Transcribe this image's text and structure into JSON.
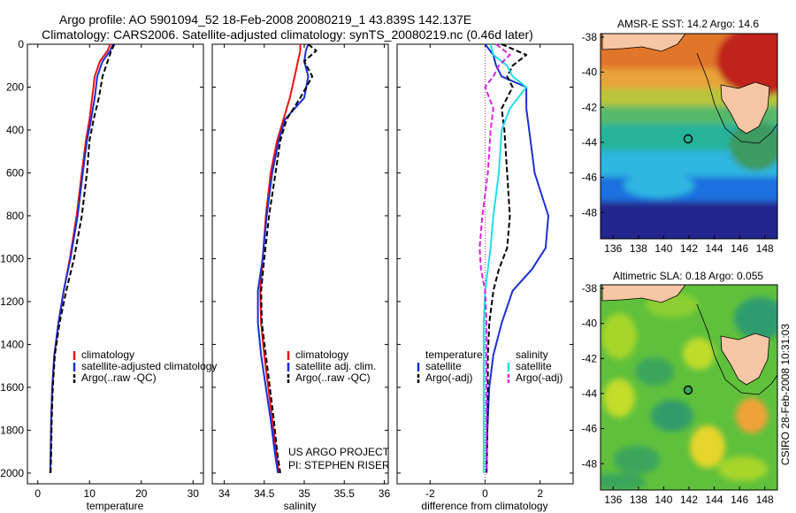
{
  "header": {
    "line1": "Argo profile: AO 5901094_52 18-Feb-2008 20080219_1 43.839S 142.137E",
    "line2": "Climatology: CARS2006. Satellite-adjusted climatology: synTS_20080219.nc (0.46d later)"
  },
  "credit": {
    "project": "US ARGO PROJECT",
    "pi": "PI: STEPHEN RISER",
    "stamp": "CSIRO 28-Feb-2008 10:31:03"
  },
  "colors": {
    "climatology": "#ee1111",
    "satellite": "#1a2fd6",
    "argo": "#000000",
    "sal_satellite": "#22dde8",
    "sal_argo": "#dd22dd"
  },
  "chart_data": [
    {
      "type": "line",
      "xlabel": "temperature",
      "xlim": [
        -2,
        32
      ],
      "xticks": [
        0,
        10,
        20,
        30
      ],
      "ylim": [
        2050,
        0
      ],
      "yticks": [
        0,
        200,
        400,
        600,
        800,
        1000,
        1200,
        1400,
        1600,
        1800,
        2000
      ],
      "legend": {
        "entries": [
          "climatology",
          "satellite-adjusted climatology",
          "Argo(..raw -QC)"
        ]
      },
      "series": [
        {
          "name": "climatology",
          "color_key": "climatology",
          "dash": "solid",
          "x": [
            14.0,
            13.5,
            12.0,
            11.0,
            10.5,
            10.0,
            9.3,
            8.5,
            7.5,
            6.2,
            5.0,
            4.0,
            3.2,
            2.8,
            2.6,
            2.5,
            2.4
          ],
          "y": [
            0,
            30,
            80,
            150,
            250,
            350,
            450,
            600,
            800,
            1000,
            1150,
            1300,
            1450,
            1600,
            1750,
            1900,
            2000
          ]
        },
        {
          "name": "satellite-adjusted climatology",
          "color_key": "satellite",
          "dash": "solid",
          "x": [
            14.5,
            14.0,
            12.5,
            11.5,
            11.0,
            10.3,
            9.5,
            8.7,
            7.7,
            6.3,
            5.0,
            4.0,
            3.2,
            2.8,
            2.6,
            2.5,
            2.4
          ],
          "y": [
            0,
            30,
            80,
            150,
            250,
            350,
            450,
            600,
            800,
            1000,
            1150,
            1300,
            1450,
            1600,
            1750,
            1900,
            2000
          ]
        },
        {
          "name": "Argo(..raw -QC)",
          "color_key": "argo",
          "dash": "dash",
          "x": [
            14.8,
            14.2,
            13.5,
            12.5,
            11.8,
            10.8,
            10.0,
            9.5,
            8.5,
            7.0,
            5.5,
            4.2,
            3.3,
            2.9,
            2.7,
            2.6,
            2.5
          ],
          "y": [
            0,
            30,
            80,
            150,
            250,
            350,
            450,
            600,
            800,
            1000,
            1150,
            1300,
            1450,
            1600,
            1750,
            1900,
            2000
          ]
        }
      ]
    },
    {
      "type": "line",
      "xlabel": "salinity",
      "xlim": [
        33.85,
        36.05
      ],
      "xticks": [
        34,
        34.5,
        35,
        35.5,
        36
      ],
      "ylim": [
        2050,
        0
      ],
      "legend": {
        "entries": [
          "climatology",
          "satellite adj. clim.",
          "Argo(..raw -QC)"
        ]
      },
      "series": [
        {
          "name": "climatology",
          "color_key": "climatology",
          "dash": "solid",
          "x": [
            34.95,
            34.95,
            34.92,
            34.88,
            34.82,
            34.74,
            34.66,
            34.58,
            34.52,
            34.48,
            34.45,
            34.46,
            34.5,
            34.55,
            34.6,
            34.65,
            34.68
          ],
          "y": [
            0,
            30,
            80,
            150,
            250,
            350,
            450,
            600,
            800,
            1000,
            1150,
            1300,
            1450,
            1600,
            1750,
            1900,
            2000
          ]
        },
        {
          "name": "satellite adj. clim.",
          "color_key": "satellite",
          "dash": "solid",
          "x": [
            35.05,
            35.02,
            35.0,
            35.05,
            35.0,
            34.76,
            34.68,
            34.6,
            34.53,
            34.48,
            34.42,
            34.42,
            34.46,
            34.52,
            34.58,
            34.63,
            34.67
          ],
          "y": [
            0,
            30,
            80,
            150,
            250,
            350,
            450,
            600,
            800,
            1000,
            1150,
            1300,
            1450,
            1600,
            1750,
            1900,
            2000
          ]
        },
        {
          "name": "Argo(..raw -QC)",
          "color_key": "argo",
          "dash": "dash",
          "x": [
            35.05,
            35.15,
            35.0,
            35.1,
            34.95,
            34.78,
            34.7,
            34.64,
            34.56,
            34.5,
            34.46,
            34.47,
            34.52,
            34.57,
            34.62,
            34.66,
            34.7
          ],
          "y": [
            0,
            30,
            80,
            150,
            250,
            350,
            450,
            600,
            800,
            1000,
            1150,
            1300,
            1450,
            1600,
            1750,
            1900,
            2000
          ]
        }
      ]
    },
    {
      "type": "line",
      "xlabel": "difference from climatology",
      "xlim": [
        -3.2,
        3.2
      ],
      "xticks": [
        -2,
        0,
        2
      ],
      "ylim": [
        2050,
        0
      ],
      "legend": {
        "columns": [
          "temperature",
          "salinity"
        ],
        "entries": [
          "satellite",
          "Argo(-adj)",
          "satellite",
          "Argo(-adj)"
        ]
      },
      "series": [
        {
          "name": "temperature satellite",
          "color_key": "satellite",
          "dash": "solid",
          "x": [
            0.0,
            0.3,
            0.4,
            0.6,
            1.5,
            1.5,
            1.6,
            1.8,
            2.3,
            2.2,
            1.7,
            1.0,
            0.6,
            0.3,
            0.15,
            0.08,
            0.05
          ],
          "y": [
            0,
            50,
            100,
            150,
            200,
            300,
            400,
            600,
            800,
            950,
            1050,
            1150,
            1300,
            1450,
            1600,
            1800,
            2000
          ]
        },
        {
          "name": "temperature Argo(-adj)",
          "color_key": "argo",
          "dash": "dash",
          "x": [
            0.6,
            1.5,
            1.0,
            0.8,
            1.0,
            0.6,
            0.7,
            0.8,
            0.9,
            0.8,
            0.5,
            0.3,
            0.15,
            0.1,
            0.1,
            0.08,
            0.05
          ],
          "y": [
            0,
            50,
            100,
            150,
            200,
            300,
            400,
            600,
            800,
            950,
            1050,
            1150,
            1300,
            1450,
            1600,
            1800,
            2000
          ]
        },
        {
          "name": "salinity satellite",
          "color_key": "sal_satellite",
          "dash": "solid",
          "x": [
            0.2,
            0.3,
            0.8,
            1.0,
            1.5,
            0.9,
            0.6,
            0.5,
            0.3,
            0.2,
            0.1,
            0.0,
            -0.05,
            -0.05,
            -0.05,
            -0.05,
            -0.05
          ],
          "y": [
            0,
            50,
            100,
            150,
            200,
            300,
            400,
            600,
            800,
            950,
            1050,
            1150,
            1300,
            1450,
            1600,
            1800,
            2000
          ]
        },
        {
          "name": "salinity Argo(-adj)",
          "color_key": "sal_argo",
          "dash": "dash",
          "x": [
            0.4,
            0.9,
            0.5,
            0.3,
            0.0,
            0.3,
            0.2,
            0.1,
            -0.1,
            -0.2,
            -0.15,
            0.0,
            0.05,
            0.05,
            0.05,
            0.05,
            0.05
          ],
          "y": [
            0,
            50,
            100,
            150,
            200,
            300,
            400,
            600,
            800,
            950,
            1050,
            1150,
            1300,
            1450,
            1600,
            1800,
            2000
          ]
        }
      ]
    },
    {
      "type": "heatmap",
      "title": "AMSR-E SST: 14.2 Argo: 14.6",
      "xlim": [
        135,
        149
      ],
      "ylim": [
        -49.5,
        -37.8
      ],
      "xticks": [
        136,
        138,
        140,
        142,
        144,
        146,
        148
      ],
      "yticks": [
        -38,
        -40,
        -42,
        -44,
        -46,
        -48
      ],
      "marker": {
        "lon": 142.137,
        "lat": -43.839
      }
    },
    {
      "type": "heatmap",
      "title": "Altimetric SLA: 0.18 Argo: 0.055",
      "xlim": [
        135,
        149
      ],
      "ylim": [
        -49.5,
        -37.8
      ],
      "xticks": [
        136,
        138,
        140,
        142,
        144,
        146,
        148
      ],
      "yticks": [
        -38,
        -40,
        -42,
        -44,
        -46,
        -48
      ],
      "marker": {
        "lon": 142.137,
        "lat": -43.839
      }
    }
  ]
}
